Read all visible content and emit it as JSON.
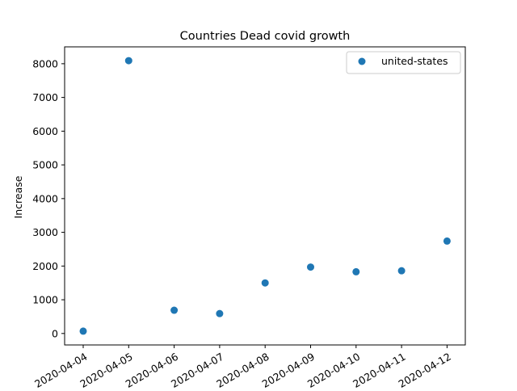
{
  "chart_data": {
    "type": "scatter",
    "title": "Countries Dead covid growth",
    "xlabel": "",
    "ylabel": "Increase",
    "x": [
      "2020-04-04",
      "2020-04-05",
      "2020-04-06",
      "2020-04-07",
      "2020-04-08",
      "2020-04-09",
      "2020-04-10",
      "2020-04-11",
      "2020-04-12"
    ],
    "series": [
      {
        "name": "united-states",
        "values": [
          70,
          8090,
          690,
          590,
          1500,
          1970,
          1830,
          1860,
          2740
        ],
        "color": "#1f77b4",
        "marker": "circle"
      }
    ],
    "ylim": [
      -340,
      8500
    ],
    "yticks": [
      0,
      1000,
      2000,
      3000,
      4000,
      5000,
      6000,
      7000,
      8000
    ],
    "xtick_labels": [
      "2020-04-04",
      "2020-04-05",
      "2020-04-06",
      "2020-04-07",
      "2020-04-08",
      "2020-04-09",
      "2020-04-10",
      "2020-04-11",
      "2020-04-12"
    ],
    "xtick_rotation": "30deg",
    "grid": false,
    "legend": {
      "placement": "top-right",
      "entries": [
        "united-states"
      ]
    }
  }
}
